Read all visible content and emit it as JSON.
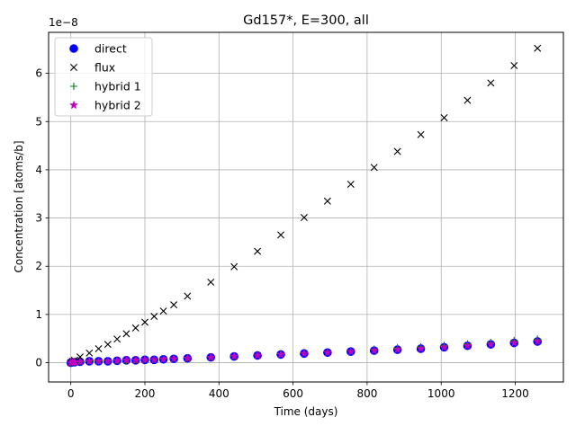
{
  "chart_data": {
    "type": "scatter",
    "title": "Gd157*, E=300, all",
    "xlabel": "Time (days)",
    "ylabel": "Concentration [atoms/b]",
    "y_scale_note": "1e−8",
    "xlim": [
      -60,
      1330
    ],
    "ylim": [
      -0.4,
      6.85
    ],
    "x_ticks": [
      0,
      200,
      400,
      600,
      800,
      1000,
      1200
    ],
    "x_tick_labels": [
      "0",
      "200",
      "400",
      "600",
      "800",
      "1000",
      "1200"
    ],
    "y_ticks": [
      0,
      1,
      2,
      3,
      4,
      5,
      6
    ],
    "y_tick_labels": [
      "0",
      "1",
      "2",
      "3",
      "4",
      "5",
      "6"
    ],
    "grid": true,
    "legend_position": "top-left",
    "series": [
      {
        "name": "direct",
        "marker": "circle",
        "color": "#0000ff",
        "x": [
          0,
          5,
          10,
          25,
          50,
          75,
          100,
          125,
          150,
          175,
          200,
          225,
          250,
          278,
          315,
          378,
          441,
          504,
          567,
          630,
          693,
          756,
          819,
          882,
          945,
          1008,
          1071,
          1134,
          1197,
          1260
        ],
        "y": [
          0.0,
          0.01,
          0.01,
          0.02,
          0.03,
          0.03,
          0.03,
          0.04,
          0.05,
          0.05,
          0.06,
          0.06,
          0.07,
          0.08,
          0.09,
          0.11,
          0.13,
          0.15,
          0.17,
          0.19,
          0.21,
          0.23,
          0.25,
          0.27,
          0.29,
          0.32,
          0.35,
          0.38,
          0.41,
          0.44
        ]
      },
      {
        "name": "flux",
        "marker": "x",
        "color": "#000000",
        "x": [
          0,
          5,
          10,
          25,
          50,
          75,
          100,
          125,
          150,
          175,
          200,
          225,
          250,
          278,
          315,
          378,
          441,
          504,
          567,
          630,
          693,
          756,
          819,
          882,
          945,
          1008,
          1071,
          1134,
          1197,
          1260
        ],
        "y": [
          0.0,
          0.03,
          0.05,
          0.12,
          0.2,
          0.29,
          0.38,
          0.49,
          0.6,
          0.72,
          0.84,
          0.96,
          1.07,
          1.2,
          1.38,
          1.67,
          1.99,
          2.31,
          2.65,
          3.01,
          3.35,
          3.7,
          4.05,
          4.38,
          4.73,
          5.08,
          5.44,
          5.8,
          6.16,
          6.52
        ]
      },
      {
        "name": "hybrid 1",
        "marker": "plus",
        "color": "#008000",
        "x": [
          0,
          5,
          10,
          25,
          50,
          75,
          100,
          125,
          150,
          175,
          200,
          225,
          250,
          278,
          315,
          378,
          441,
          504,
          567,
          630,
          693,
          756,
          819,
          882,
          945,
          1008,
          1071,
          1134,
          1197,
          1260
        ],
        "y": [
          0.0,
          0.01,
          0.01,
          0.02,
          0.03,
          0.03,
          0.04,
          0.05,
          0.05,
          0.06,
          0.07,
          0.07,
          0.08,
          0.09,
          0.1,
          0.12,
          0.14,
          0.17,
          0.19,
          0.21,
          0.23,
          0.25,
          0.28,
          0.31,
          0.33,
          0.36,
          0.39,
          0.42,
          0.46,
          0.49
        ]
      },
      {
        "name": "hybrid 2",
        "marker": "star",
        "color": "#bf00bf",
        "x": [
          0,
          5,
          10,
          25,
          50,
          75,
          100,
          125,
          150,
          175,
          200,
          225,
          250,
          278,
          315,
          378,
          441,
          504,
          567,
          630,
          693,
          756,
          819,
          882,
          945,
          1008,
          1071,
          1134,
          1197,
          1260
        ],
        "y": [
          0.0,
          0.01,
          0.01,
          0.02,
          0.03,
          0.03,
          0.03,
          0.04,
          0.05,
          0.05,
          0.06,
          0.06,
          0.07,
          0.08,
          0.09,
          0.11,
          0.13,
          0.15,
          0.17,
          0.19,
          0.21,
          0.23,
          0.25,
          0.27,
          0.29,
          0.32,
          0.35,
          0.38,
          0.41,
          0.44
        ]
      }
    ]
  }
}
